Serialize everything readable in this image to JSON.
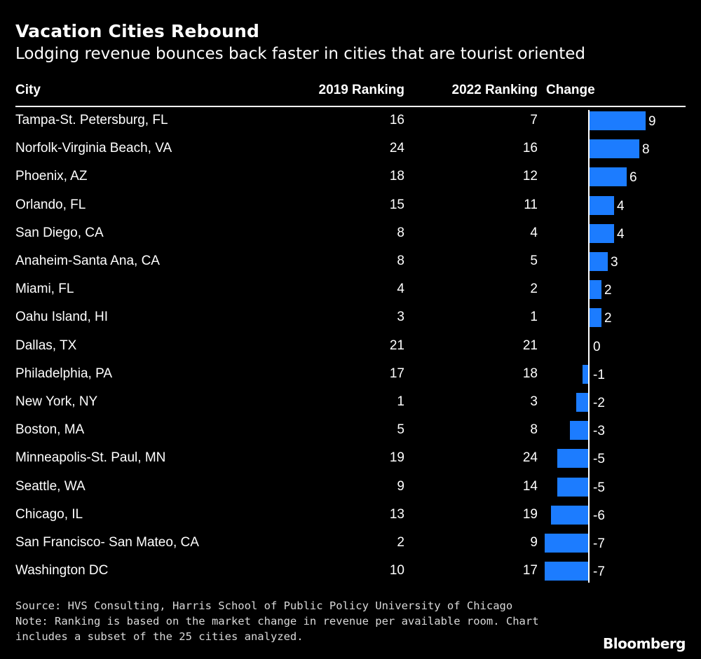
{
  "title": "Vacation Cities Rebound",
  "subtitle": "Lodging revenue bounces back faster in cities that are tourist oriented",
  "headers": {
    "city": "City",
    "r2019": "2019 Ranking",
    "r2022": "2022 Ranking",
    "change": "Change"
  },
  "chart_data": {
    "type": "table",
    "columns": [
      "City",
      "2019 Ranking",
      "2022 Ranking",
      "Change"
    ],
    "rows": [
      {
        "city": "Tampa-St. Petersburg, FL",
        "r2019": 16,
        "r2022": 7,
        "change": 9
      },
      {
        "city": "Norfolk-Virginia Beach, VA",
        "r2019": 24,
        "r2022": 16,
        "change": 8
      },
      {
        "city": "Phoenix, AZ",
        "r2019": 18,
        "r2022": 12,
        "change": 6
      },
      {
        "city": "Orlando, FL",
        "r2019": 15,
        "r2022": 11,
        "change": 4
      },
      {
        "city": "San Diego, CA",
        "r2019": 8,
        "r2022": 4,
        "change": 4
      },
      {
        "city": "Anaheim-Santa Ana, CA",
        "r2019": 8,
        "r2022": 5,
        "change": 3
      },
      {
        "city": "Miami, FL",
        "r2019": 4,
        "r2022": 2,
        "change": 2
      },
      {
        "city": "Oahu Island, HI",
        "r2019": 3,
        "r2022": 1,
        "change": 2
      },
      {
        "city": "Dallas, TX",
        "r2019": 21,
        "r2022": 21,
        "change": 0
      },
      {
        "city": "Philadelphia, PA",
        "r2019": 17,
        "r2022": 18,
        "change": -1
      },
      {
        "city": "New York, NY",
        "r2019": 1,
        "r2022": 3,
        "change": -2
      },
      {
        "city": "Boston, MA",
        "r2019": 5,
        "r2022": 8,
        "change": -3
      },
      {
        "city": "Minneapolis-St. Paul, MN",
        "r2019": 19,
        "r2022": 24,
        "change": -5
      },
      {
        "city": "Seattle, WA",
        "r2019": 9,
        "r2022": 14,
        "change": -5
      },
      {
        "city": "Chicago, IL",
        "r2019": 13,
        "r2022": 19,
        "change": -6
      },
      {
        "city": "San Francisco- San Mateo, CA",
        "r2019": 2,
        "r2022": 9,
        "change": -7
      },
      {
        "city": "Washington DC",
        "r2019": 10,
        "r2022": 17,
        "change": -7
      }
    ],
    "bar_color": "#1c7cff"
  },
  "footer": {
    "source": "Source: HVS Consulting, Harris School of Public Policy University of Chicago",
    "note_line1": "Note: Ranking is based on the market change in revenue per available room. Chart",
    "note_line2": "includes a subset of the 25 cities analyzed."
  },
  "brand": "Bloomberg"
}
